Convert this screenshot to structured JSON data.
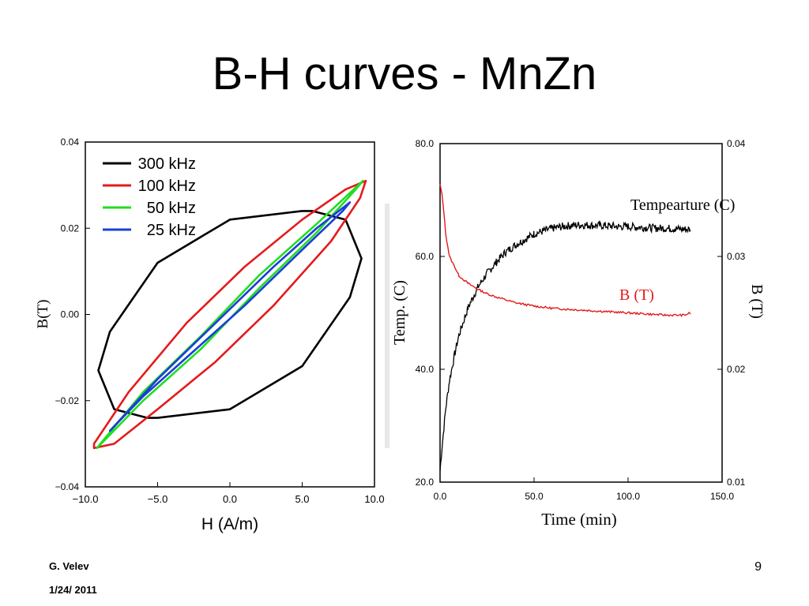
{
  "slide": {
    "title": "B-H curves - MnZn",
    "author": "G. Velev",
    "date": "1/24/ 2011",
    "page_number": "9"
  },
  "chart_data": [
    {
      "type": "line",
      "xlabel": "H (A/m)",
      "ylabel": "B(T)",
      "xlim": [
        -10.0,
        10.0
      ],
      "ylim": [
        -0.04,
        0.04
      ],
      "x_ticks": [
        "−10.0",
        "−5.0",
        "0.0",
        "5.0",
        "10.0"
      ],
      "y_ticks": [
        "−0.04",
        "−0.02",
        "0.00",
        "0.02",
        "0.04"
      ],
      "legend_position": "top-left",
      "series": [
        {
          "name": "300 kHz",
          "color": "#000000",
          "x": [
            -9.1,
            -8.3,
            -5.0,
            0.0,
            5.0,
            5.7,
            8.0,
            9.1,
            8.3,
            5.0,
            0.0,
            -5.0,
            -5.7,
            -8.0,
            -9.1
          ],
          "y": [
            -0.013,
            -0.004,
            0.012,
            0.022,
            0.024,
            0.024,
            0.022,
            0.013,
            0.004,
            -0.012,
            -0.022,
            -0.024,
            -0.024,
            -0.022,
            -0.013
          ]
        },
        {
          "name": "100 kHz",
          "color": "#e41a1c",
          "x": [
            -9.4,
            -7.0,
            -3.0,
            1.0,
            5.0,
            8.0,
            9.4,
            9.0,
            7.0,
            3.0,
            -1.0,
            -5.0,
            -8.0,
            -9.4
          ],
          "y": [
            -0.03,
            -0.018,
            -0.002,
            0.011,
            0.022,
            0.029,
            0.031,
            0.027,
            0.017,
            0.002,
            -0.011,
            -0.022,
            -0.03,
            -0.031
          ]
        },
        {
          "name": "50 kHz",
          "color": "#22dd22",
          "x": [
            -9.2,
            -6.0,
            -2.0,
            2.0,
            6.0,
            9.2,
            8.7,
            6.0,
            2.0,
            -2.0,
            -6.0,
            -9.2
          ],
          "y": [
            -0.031,
            -0.018,
            -0.005,
            0.009,
            0.021,
            0.031,
            0.029,
            0.019,
            0.006,
            -0.008,
            -0.02,
            -0.031
          ]
        },
        {
          "name": "25 kHz",
          "color": "#1a3fd6",
          "x": [
            -8.3,
            -5.0,
            -1.0,
            3.0,
            6.0,
            8.3,
            7.8,
            5.0,
            1.0,
            -3.0,
            -6.0,
            -8.3
          ],
          "y": [
            -0.027,
            -0.015,
            -0.002,
            0.011,
            0.02,
            0.026,
            0.024,
            0.015,
            0.002,
            -0.01,
            -0.019,
            -0.027
          ]
        }
      ]
    },
    {
      "type": "line",
      "xlabel": "Time (min)",
      "ylabel": "Temp. (C)",
      "ylabel_right": "B (T)",
      "xlim": [
        0.0,
        150.0
      ],
      "ylim": [
        20.0,
        80.0
      ],
      "ylim_right": [
        0.01,
        0.04
      ],
      "x_ticks": [
        "0.0",
        "50.0",
        "100.0",
        "150.0"
      ],
      "y_ticks": [
        "20.0",
        "40.0",
        "60.0",
        "80.0"
      ],
      "y_ticks_right": [
        "0.01",
        "0.02",
        "0.03",
        "0.04"
      ],
      "series": [
        {
          "name": "Tempearture (C)",
          "color": "#000000",
          "axis": "left",
          "x": [
            0,
            1,
            3,
            5,
            8,
            10,
            15,
            20,
            25,
            30,
            35,
            40,
            45,
            50,
            55,
            60,
            65,
            70,
            75,
            80,
            85,
            90,
            95,
            100,
            105,
            110,
            115,
            120,
            125,
            130,
            133
          ],
          "y": [
            22,
            26,
            33,
            38,
            43,
            46,
            51,
            54.5,
            57,
            59,
            60.8,
            62,
            63,
            64,
            64.5,
            65,
            65.3,
            65.5,
            65.6,
            65.5,
            65.5,
            65.4,
            65.3,
            65.3,
            65.2,
            65.1,
            65.0,
            65.0,
            64.9,
            64.8,
            64.8
          ]
        },
        {
          "name": "B (T)",
          "color": "#e41a1c",
          "axis": "right",
          "x": [
            0,
            1,
            2,
            3,
            5,
            8,
            10,
            15,
            20,
            25,
            30,
            40,
            50,
            60,
            70,
            80,
            90,
            100,
            110,
            120,
            130,
            133
          ],
          "y": [
            0.0364,
            0.0355,
            0.034,
            0.032,
            0.03,
            0.029,
            0.0283,
            0.0276,
            0.0271,
            0.0267,
            0.0264,
            0.0259,
            0.0256,
            0.0254,
            0.0253,
            0.0252,
            0.0251,
            0.025,
            0.0249,
            0.0248,
            0.0248,
            0.025
          ]
        }
      ]
    }
  ]
}
